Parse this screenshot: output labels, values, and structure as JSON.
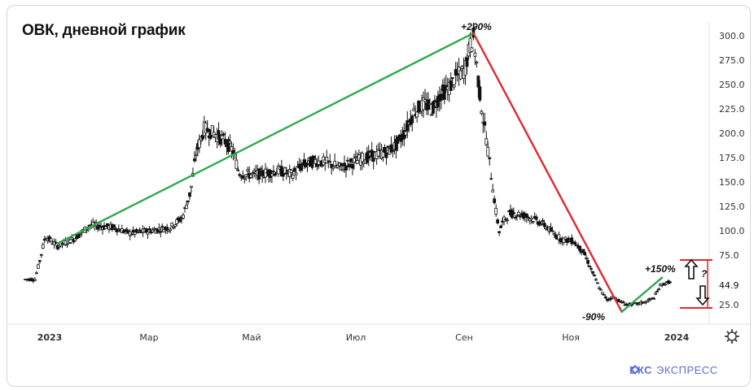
{
  "title": "ОВК, дневной график",
  "brand": {
    "name_bold": "БКС",
    "name_light": "ЭКСПРЕСС"
  },
  "colors": {
    "up_line": "#2eaa4a",
    "down_line": "#e0282e",
    "range": "#e0282e",
    "candles": "#111111",
    "axis_text": "#333333"
  },
  "icons": {
    "settings": "gear-icon",
    "arrow_up": "hollow-arrow-up-icon",
    "arrow_down": "hollow-arrow-down-icon",
    "logo": "bks-logo-icon"
  },
  "chart_data": {
    "type": "candlestick",
    "title": "ОВК, дневной график",
    "y_ticks": [
      "300.0",
      "275.0",
      "250.0",
      "225.0",
      "200.0",
      "175.0",
      "150.0",
      "125.0",
      "100.0",
      "75.0",
      "44.9",
      "25.0"
    ],
    "x_ticks": [
      {
        "label": "2023",
        "bold": true
      },
      {
        "label": "Мар",
        "bold": false
      },
      {
        "label": "Май",
        "bold": false
      },
      {
        "label": "Июл",
        "bold": false
      },
      {
        "label": "Сен",
        "bold": false
      },
      {
        "label": "Ноя",
        "bold": false
      },
      {
        "label": "2024",
        "bold": true
      }
    ],
    "current_price": "44.9",
    "price_path": [
      [
        0,
        51
      ],
      [
        12,
        51
      ],
      [
        18,
        70
      ],
      [
        25,
        95
      ],
      [
        40,
        85
      ],
      [
        60,
        92
      ],
      [
        80,
        106
      ],
      [
        110,
        104
      ],
      [
        130,
        98
      ],
      [
        150,
        100
      ],
      [
        180,
        104
      ],
      [
        195,
        114
      ],
      [
        205,
        140
      ],
      [
        212,
        180
      ],
      [
        222,
        205
      ],
      [
        235,
        200
      ],
      [
        248,
        192
      ],
      [
        258,
        182
      ],
      [
        265,
        160
      ],
      [
        273,
        158
      ],
      [
        285,
        158
      ],
      [
        300,
        160
      ],
      [
        315,
        162
      ],
      [
        330,
        158
      ],
      [
        345,
        168
      ],
      [
        360,
        172
      ],
      [
        375,
        170
      ],
      [
        390,
        165
      ],
      [
        405,
        170
      ],
      [
        420,
        175
      ],
      [
        435,
        178
      ],
      [
        450,
        182
      ],
      [
        460,
        188
      ],
      [
        470,
        200
      ],
      [
        482,
        222
      ],
      [
        495,
        230
      ],
      [
        505,
        225
      ],
      [
        515,
        240
      ],
      [
        525,
        246
      ],
      [
        535,
        258
      ],
      [
        545,
        265
      ],
      [
        552,
        290
      ],
      [
        556,
        298
      ],
      [
        560,
        270
      ],
      [
        564,
        240
      ],
      [
        568,
        215
      ],
      [
        572,
        195
      ],
      [
        576,
        170
      ],
      [
        580,
        145
      ],
      [
        584,
        120
      ],
      [
        588,
        100
      ],
      [
        593,
        110
      ],
      [
        600,
        118
      ],
      [
        610,
        118
      ],
      [
        620,
        116
      ],
      [
        632,
        112
      ],
      [
        645,
        106
      ],
      [
        655,
        98
      ],
      [
        665,
        92
      ],
      [
        680,
        90
      ],
      [
        693,
        78
      ],
      [
        700,
        65
      ],
      [
        708,
        50
      ],
      [
        715,
        38
      ],
      [
        722,
        30
      ],
      [
        730,
        33
      ],
      [
        738,
        28
      ],
      [
        748,
        25
      ],
      [
        760,
        26
      ],
      [
        770,
        28
      ],
      [
        780,
        32
      ],
      [
        788,
        45
      ],
      [
        798,
        48
      ],
      [
        805,
        46
      ]
    ],
    "annotations": [
      {
        "text": "+290%"
      },
      {
        "text": "-90%"
      },
      {
        "text": "+150%"
      },
      {
        "text": "?"
      }
    ],
    "trend_lines": [
      {
        "name": "",
        "from": [
          40,
          86
        ],
        "to": [
          556,
          301
        ]
      },
      {
        "name": "",
        "from": [
          556,
          301
        ],
        "to": [
          740,
          16
        ]
      },
      {
        "name": "",
        "from": [
          740,
          16
        ],
        "to": [
          790,
          51
        ]
      }
    ],
    "range_levels": [
      70,
      21
    ]
  }
}
